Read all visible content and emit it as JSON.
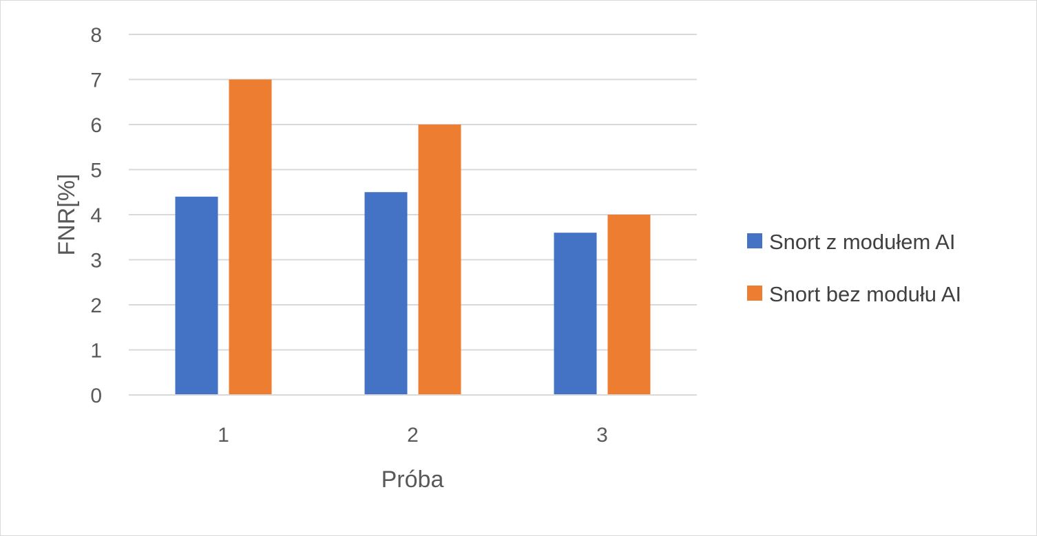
{
  "chart_data": {
    "type": "bar",
    "title": "",
    "xlabel": "Próba",
    "ylabel": "FNR[%]",
    "categories": [
      "1",
      "2",
      "3"
    ],
    "series": [
      {
        "name": "Snort z modułem AI",
        "color": "#4472c4",
        "values": [
          4.4,
          4.5,
          3.6
        ]
      },
      {
        "name": "Snort bez modułu AI",
        "color": "#ed7d31",
        "values": [
          7.0,
          6.0,
          4.0
        ]
      }
    ],
    "ylim": [
      0,
      8
    ],
    "yticks": [
      "0",
      "1",
      "2",
      "3",
      "4",
      "5",
      "6",
      "7",
      "8"
    ],
    "grid": true,
    "legend_position": "right"
  }
}
